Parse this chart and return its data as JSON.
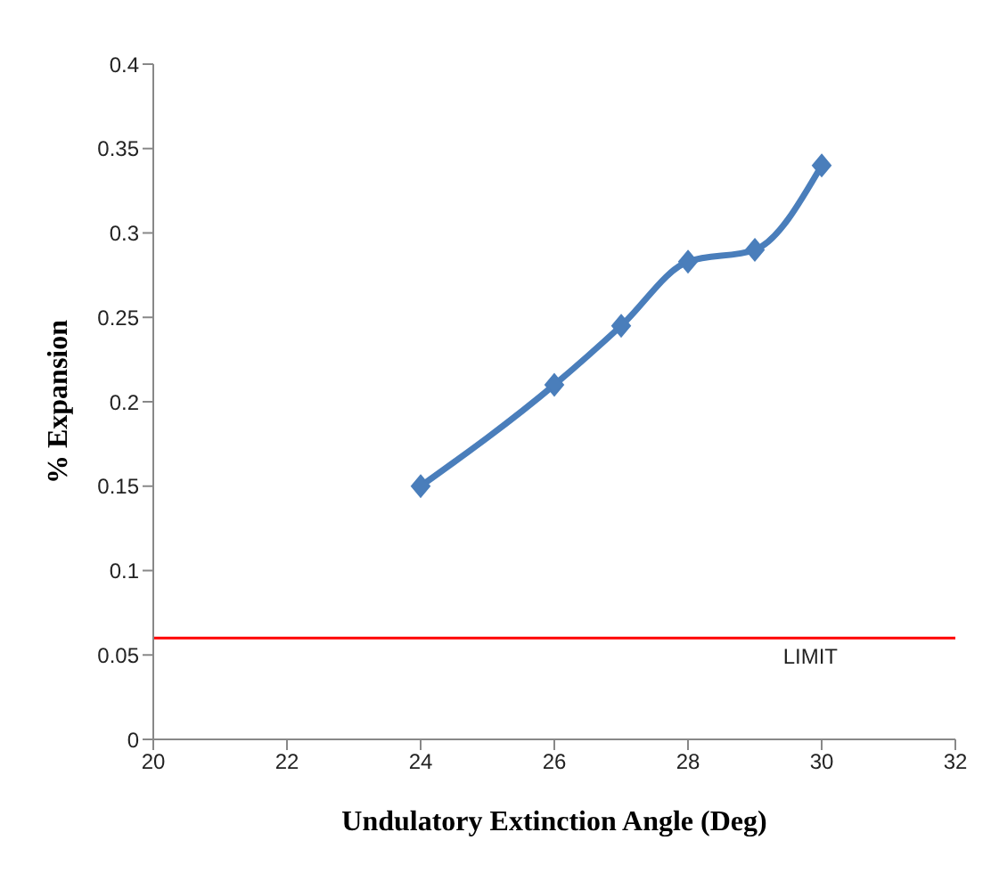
{
  "chart_data": {
    "type": "line",
    "xlabel": "Undulatory Extinction Angle (Deg)",
    "ylabel": "% Expansion",
    "x": [
      24,
      26,
      27,
      28,
      29,
      30
    ],
    "series": [
      {
        "color": "#4a7ebb",
        "values": [
          0.15,
          0.21,
          0.245,
          0.283,
          0.29,
          0.34
        ]
      }
    ],
    "xlim": [
      20,
      32
    ],
    "xticks": [
      20,
      22,
      24,
      26,
      28,
      30,
      32
    ],
    "ylim": [
      0,
      0.4
    ],
    "yticks": [
      0,
      0.05,
      0.1,
      0.15,
      0.2,
      0.25,
      0.3,
      0.35,
      0.4
    ],
    "ref_lines": [
      {
        "axis": "y",
        "value": 0.06,
        "label": "LIMIT",
        "color": "#ff0000"
      }
    ],
    "marker": "diamond",
    "grid": false,
    "legend": false
  }
}
